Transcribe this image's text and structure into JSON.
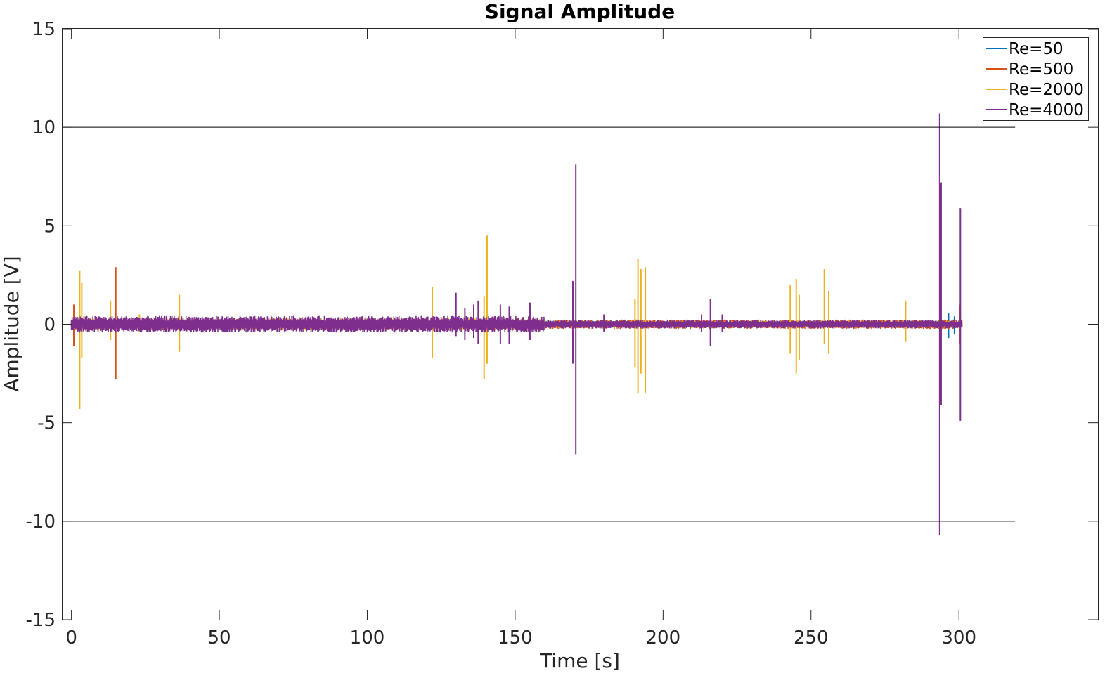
{
  "chart_data": {
    "type": "line",
    "title": "Signal Amplitude",
    "xlabel": "Time [s]",
    "ylabel": "Amplitude [V]",
    "xlim": [
      -3,
      347
    ],
    "ylim": [
      -15,
      15
    ],
    "xticks": [
      0,
      50,
      100,
      150,
      200,
      250,
      300
    ],
    "yticks": [
      -15,
      -10,
      -5,
      0,
      5,
      10,
      15
    ],
    "grid": false,
    "legend_position": "top-right",
    "reference_lines": [
      {
        "y": 10,
        "x_range": [
          -3,
          319
        ]
      },
      {
        "y": -10,
        "x_range": [
          -3,
          319
        ]
      }
    ],
    "series": [
      {
        "name": "Re=50",
        "color": "#0072BD",
        "noise_amplitude": 0.15,
        "x_range": [
          0,
          301
        ],
        "spikes": [
          [
            296.5,
            0.55,
            -0.7
          ],
          [
            298.5,
            0.4,
            -0.5
          ]
        ]
      },
      {
        "name": "Re=500",
        "color": "#D95319",
        "noise_amplitude": 0.2,
        "x_range": [
          0,
          301
        ],
        "spikes": [
          [
            0.8,
            1.0,
            -1.1
          ],
          [
            15.0,
            2.9,
            -2.8
          ],
          [
            300.3,
            1.0,
            -1.0
          ]
        ]
      },
      {
        "name": "Re=2000",
        "color": "#EDB120",
        "noise_amplitude": 0.25,
        "x_range": [
          0,
          301
        ],
        "spikes": [
          [
            2.8,
            2.7,
            -4.3
          ],
          [
            3.5,
            2.1,
            -1.7
          ],
          [
            13.2,
            1.2,
            -0.8
          ],
          [
            23.0,
            0.5,
            -0.4
          ],
          [
            36.5,
            1.5,
            -1.4
          ],
          [
            122.0,
            1.9,
            -1.7
          ],
          [
            139.5,
            1.4,
            -2.8
          ],
          [
            140.5,
            4.5,
            -2.0
          ],
          [
            190.5,
            1.3,
            -2.2
          ],
          [
            191.5,
            3.3,
            -3.5
          ],
          [
            192.5,
            2.8,
            -2.5
          ],
          [
            194.0,
            2.9,
            -3.5
          ],
          [
            243.0,
            2.0,
            -1.5
          ],
          [
            245.0,
            2.3,
            -2.5
          ],
          [
            246.0,
            1.5,
            -1.8
          ],
          [
            254.5,
            2.8,
            -1.0
          ],
          [
            256.0,
            1.7,
            -1.5
          ],
          [
            282.0,
            1.2,
            -0.9
          ]
        ]
      },
      {
        "name": "Re=4000",
        "color": "#7E2F8E",
        "noise_amplitude": 0.3,
        "x_range": [
          0,
          301
        ],
        "spikes": [
          [
            130.0,
            1.6,
            -0.6
          ],
          [
            133.0,
            0.8,
            -0.8
          ],
          [
            136.0,
            1.0,
            -0.7
          ],
          [
            137.5,
            1.2,
            -1.0
          ],
          [
            145.0,
            1.0,
            -1.0
          ],
          [
            148.0,
            0.9,
            -1.0
          ],
          [
            155.0,
            1.1,
            -0.8
          ],
          [
            169.5,
            2.2,
            -2.0
          ],
          [
            170.5,
            8.1,
            -6.6
          ],
          [
            180.0,
            0.5,
            -0.4
          ],
          [
            213.0,
            0.5,
            -0.4
          ],
          [
            216.0,
            1.3,
            -1.1
          ],
          [
            220.0,
            0.5,
            -0.4
          ],
          [
            293.5,
            10.7,
            -10.7
          ],
          [
            294.0,
            7.2,
            -4.1
          ],
          [
            300.5,
            5.9,
            -4.9
          ]
        ]
      }
    ]
  }
}
